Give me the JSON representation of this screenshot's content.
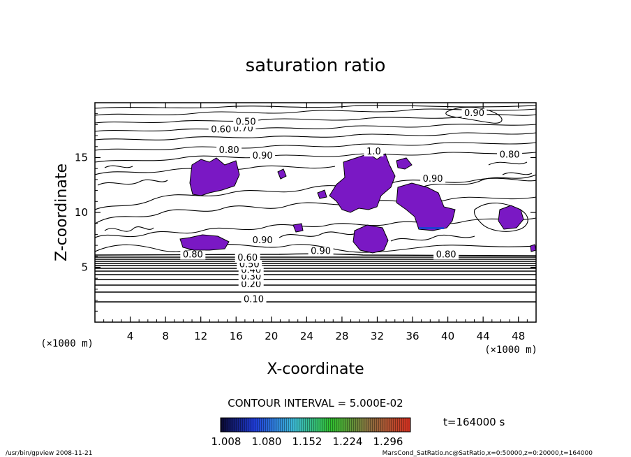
{
  "chart_data": {
    "type": "contour",
    "title": "saturation ratio",
    "xlabel": "X-coordinate",
    "ylabel": "Z-coordinate",
    "x_unit": "(×1000 m)",
    "y_unit": "(×1000 m)",
    "xlim": [
      0,
      50
    ],
    "ylim": [
      0,
      20
    ],
    "x_ticks": [
      4,
      8,
      12,
      16,
      20,
      24,
      28,
      32,
      36,
      40,
      44,
      48
    ],
    "y_ticks": [
      5,
      10,
      15
    ],
    "contour_interval_text": "CONTOUR INTERVAL = 5.000E-02",
    "contour_labels": [
      {
        "text": "0.10",
        "x": 18.0,
        "z": 1.8
      },
      {
        "text": "0.20",
        "x": 17.7,
        "z": 3.2
      },
      {
        "text": "0.30",
        "x": 17.7,
        "z": 3.9
      },
      {
        "text": "0.40",
        "x": 17.7,
        "z": 4.5
      },
      {
        "text": "0.50",
        "x": 17.5,
        "z": 5.0
      },
      {
        "text": "0.60",
        "x": 17.3,
        "z": 5.6
      },
      {
        "text": "0.90",
        "x": 19.0,
        "z": 7.2
      },
      {
        "text": "0.90",
        "x": 25.6,
        "z": 6.2
      },
      {
        "text": "0.80",
        "x": 11.1,
        "z": 5.9
      },
      {
        "text": "0.80",
        "x": 39.8,
        "z": 5.9
      },
      {
        "text": "0.80",
        "x": 15.2,
        "z": 15.4
      },
      {
        "text": "0.90",
        "x": 19.0,
        "z": 14.9
      },
      {
        "text": "0.60",
        "x": 14.3,
        "z": 17.3
      },
      {
        "text": "0.70",
        "x": 16.8,
        "z": 17.4
      },
      {
        "text": "0.50",
        "x": 17.1,
        "z": 18.0
      },
      {
        "text": "0.90",
        "x": 43.0,
        "z": 18.8
      },
      {
        "text": "0.80",
        "x": 47.0,
        "z": 15.0
      },
      {
        "text": "0.90",
        "x": 38.3,
        "z": 12.8
      },
      {
        "text": "1.0",
        "x": 31.6,
        "z": 15.3
      }
    ],
    "colorbar": {
      "labels": [
        "1.008",
        "1.080",
        "1.152",
        "1.224",
        "1.296"
      ],
      "colors": [
        "#1a0a50",
        "#1f3cd8",
        "#3cb8d8",
        "#30c030",
        "#d83020"
      ]
    },
    "fill_color": "#7a18c4",
    "time_label": "t=164000  s"
  },
  "footer": {
    "left": "/usr/bin/gpview   2008-11-21",
    "right": "MarsCond_SatRatio.nc@SatRatio,x=0:50000,z=0:20000,t=164000"
  }
}
